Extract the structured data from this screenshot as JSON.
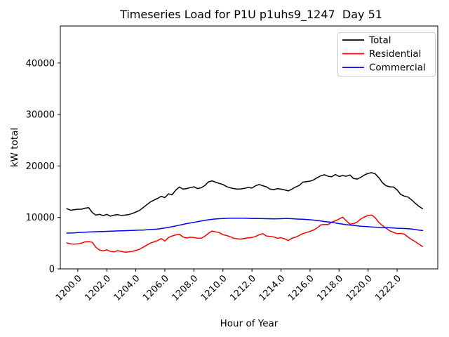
{
  "chart_data": {
    "type": "line",
    "title": "Timeseries Load for P1U p1uhs9_1247  Day 51",
    "xlabel": "Hour of Year",
    "ylabel": "kW total",
    "grid": false,
    "legend": {
      "position": "upper right",
      "entries": [
        "Total",
        "Residential",
        "Commercial"
      ]
    },
    "axis": {
      "xlim": [
        1198.8,
        1224.8
      ],
      "ylim": [
        0,
        47200
      ],
      "x_ticks": [
        1200,
        1202,
        1204,
        1206,
        1208,
        1210,
        1212,
        1214,
        1216,
        1218,
        1220,
        1222
      ],
      "x_tick_labels": [
        "1200.0",
        "1202.0",
        "1204.0",
        "1206.0",
        "1208.0",
        "1210.0",
        "1212.0",
        "1214.0",
        "1216.0",
        "1218.0",
        "1220.0",
        "1222.0"
      ],
      "y_ticks": [
        0,
        10000,
        20000,
        30000,
        40000
      ],
      "y_tick_labels": [
        "0",
        "10000",
        "20000",
        "30000",
        "40000"
      ]
    },
    "x": [
      1199.25,
      1199.5,
      1199.75,
      1200.0,
      1200.25,
      1200.5,
      1200.75,
      1201.0,
      1201.25,
      1201.5,
      1201.75,
      1202.0,
      1202.25,
      1202.5,
      1202.75,
      1203.0,
      1203.25,
      1203.5,
      1203.75,
      1204.0,
      1204.25,
      1204.5,
      1204.75,
      1205.0,
      1205.25,
      1205.5,
      1205.75,
      1206.0,
      1206.25,
      1206.5,
      1206.75,
      1207.0,
      1207.25,
      1207.5,
      1207.75,
      1208.0,
      1208.25,
      1208.5,
      1208.75,
      1209.0,
      1209.25,
      1209.5,
      1209.75,
      1210.0,
      1210.25,
      1210.5,
      1210.75,
      1211.0,
      1211.25,
      1211.5,
      1211.75,
      1212.0,
      1212.25,
      1212.5,
      1212.75,
      1213.0,
      1213.25,
      1213.5,
      1213.75,
      1214.0,
      1214.25,
      1214.5,
      1214.75,
      1215.0,
      1215.25,
      1215.5,
      1215.75,
      1216.0,
      1216.25,
      1216.5,
      1216.75,
      1217.0,
      1217.25,
      1217.5,
      1217.75,
      1218.0,
      1218.25,
      1218.5,
      1218.75,
      1219.0,
      1219.25,
      1219.5,
      1219.75,
      1220.0,
      1220.25,
      1220.5,
      1220.75,
      1221.0,
      1221.25,
      1221.5,
      1221.75,
      1222.0,
      1222.25,
      1222.5,
      1222.75,
      1223.0,
      1223.25,
      1223.5,
      1223.75
    ],
    "series": [
      {
        "name": "Total",
        "color": "#000000",
        "values": [
          11700,
          11400,
          11500,
          11600,
          11600,
          11800,
          11900,
          10950,
          10450,
          10600,
          10350,
          10600,
          10250,
          10450,
          10550,
          10400,
          10450,
          10550,
          10750,
          11050,
          11350,
          11900,
          12450,
          13000,
          13350,
          13700,
          14100,
          13850,
          14600,
          14400,
          15300,
          15900,
          15500,
          15600,
          15800,
          15950,
          15600,
          15750,
          16200,
          16900,
          17100,
          16850,
          16600,
          16400,
          16000,
          15750,
          15600,
          15500,
          15550,
          15650,
          15850,
          15700,
          16150,
          16400,
          16150,
          15950,
          15500,
          15400,
          15600,
          15500,
          15350,
          15150,
          15500,
          15900,
          16200,
          16850,
          16950,
          17050,
          17300,
          17750,
          18100,
          18300,
          18000,
          17900,
          18350,
          17950,
          18150,
          18000,
          18250,
          17550,
          17450,
          17800,
          18250,
          18550,
          18700,
          18450,
          17700,
          16700,
          16150,
          15950,
          15900,
          15350,
          14450,
          14150,
          13950,
          13400,
          12750,
          12150,
          11700
        ]
      },
      {
        "name": "Residential",
        "color": "#ff0000",
        "values": [
          5050,
          4850,
          4800,
          4850,
          5000,
          5250,
          5300,
          5150,
          4200,
          3650,
          3500,
          3700,
          3400,
          3300,
          3550,
          3400,
          3250,
          3300,
          3400,
          3600,
          3800,
          4200,
          4600,
          5000,
          5250,
          5500,
          5900,
          5400,
          6100,
          6400,
          6600,
          6750,
          6200,
          6000,
          6150,
          6100,
          5950,
          5950,
          6350,
          6900,
          7350,
          7200,
          7050,
          6650,
          6500,
          6250,
          5950,
          5850,
          5800,
          5950,
          6050,
          6100,
          6300,
          6650,
          6850,
          6400,
          6300,
          6200,
          5950,
          6050,
          5850,
          5500,
          5950,
          6150,
          6500,
          6850,
          7050,
          7300,
          7550,
          8000,
          8550,
          8650,
          8600,
          9100,
          9350,
          9700,
          10050,
          9350,
          8700,
          8800,
          9100,
          9700,
          10100,
          10400,
          10450,
          9900,
          9000,
          8400,
          7900,
          7400,
          7100,
          6850,
          6900,
          6750,
          6200,
          5700,
          5300,
          4800,
          4350
        ]
      },
      {
        "name": "Commercial",
        "color": "#0000ff",
        "values": [
          6950,
          6975,
          7000,
          7050,
          7090,
          7130,
          7170,
          7200,
          7225,
          7250,
          7275,
          7300,
          7325,
          7350,
          7375,
          7400,
          7425,
          7450,
          7475,
          7500,
          7525,
          7550,
          7600,
          7650,
          7700,
          7750,
          7850,
          7950,
          8075,
          8200,
          8350,
          8500,
          8650,
          8800,
          8925,
          9050,
          9175,
          9300,
          9425,
          9550,
          9625,
          9700,
          9750,
          9800,
          9825,
          9850,
          9850,
          9850,
          9850,
          9850,
          9825,
          9800,
          9790,
          9780,
          9765,
          9750,
          9735,
          9720,
          9735,
          9750,
          9775,
          9800,
          9750,
          9700,
          9675,
          9650,
          9600,
          9550,
          9475,
          9400,
          9300,
          9200,
          9125,
          9050,
          8925,
          8800,
          8700,
          8600,
          8525,
          8450,
          8375,
          8300,
          8250,
          8200,
          8150,
          8100,
          8075,
          8050,
          8025,
          8000,
          7950,
          7900,
          7875,
          7850,
          7800,
          7750,
          7650,
          7550,
          7450
        ]
      }
    ]
  }
}
